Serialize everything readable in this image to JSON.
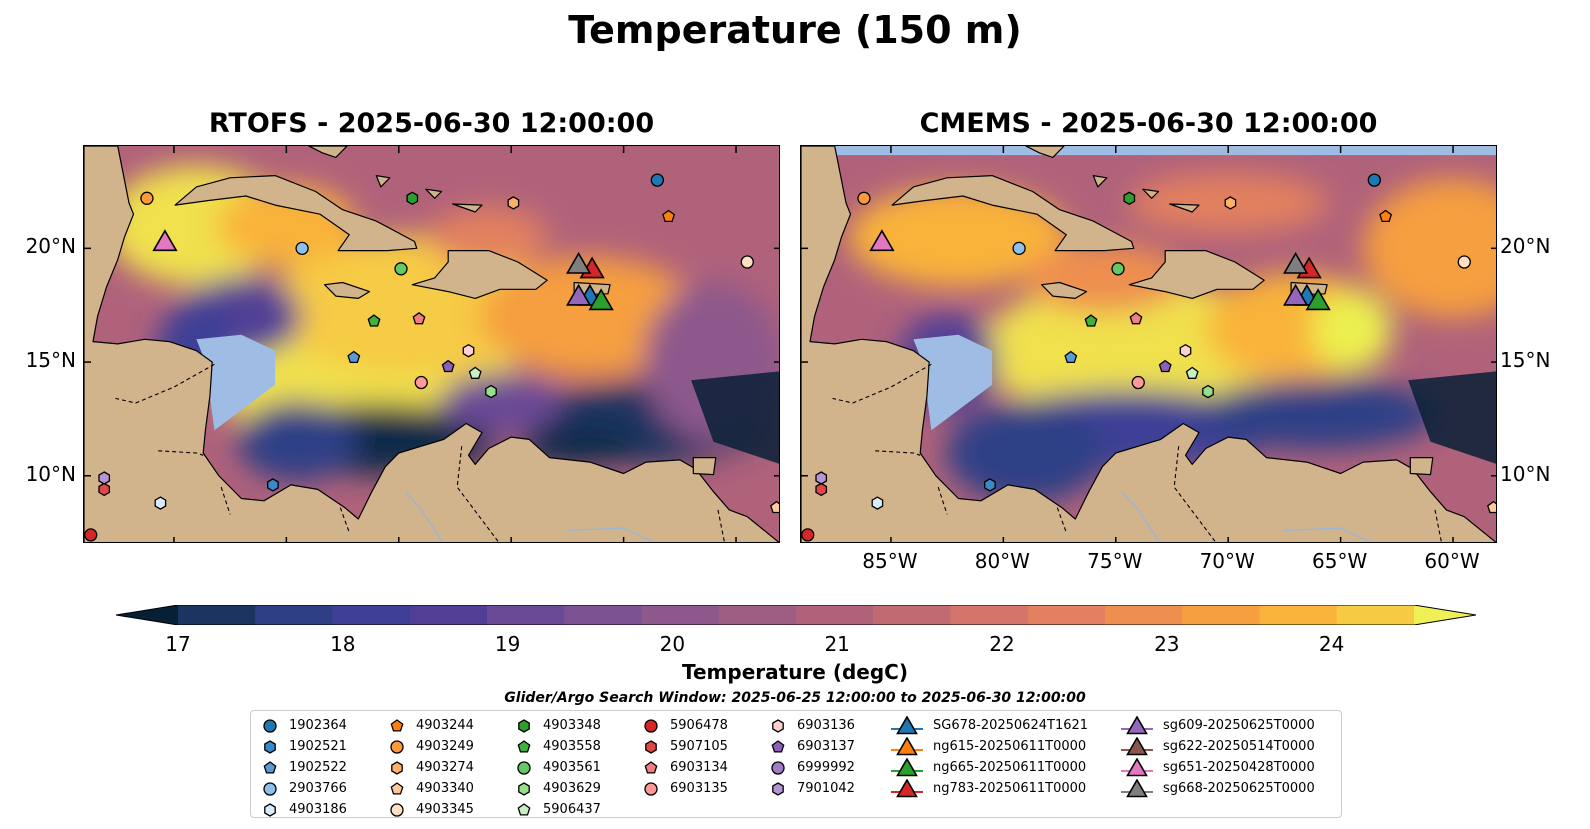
{
  "figure_title": "Temperature (150 m)",
  "panels": [
    {
      "title": "RTOFS - 2025-06-30 12:00:00"
    },
    {
      "title": "CMEMS - 2025-06-30 12:00:00"
    }
  ],
  "map_extent": {
    "lon": [
      -89,
      -58
    ],
    "lat": [
      7,
      24.5
    ]
  },
  "lon_ticks": [
    {
      "value": -85,
      "label": "85°W"
    },
    {
      "value": -80,
      "label": "80°W"
    },
    {
      "value": -75,
      "label": "75°W"
    },
    {
      "value": -70,
      "label": "70°W"
    },
    {
      "value": -65,
      "label": "65°W"
    },
    {
      "value": -60,
      "label": "60°W"
    }
  ],
  "lat_ticks": [
    {
      "value": 20,
      "label": "20°N"
    },
    {
      "value": 15,
      "label": "15°N"
    },
    {
      "value": 10,
      "label": "10°N"
    }
  ],
  "colorbar": {
    "label": "Temperature (degC)",
    "min": 17,
    "max": 24.5,
    "ticks": [
      "17",
      "18",
      "19",
      "20",
      "21",
      "22",
      "23",
      "24"
    ],
    "colors": [
      "#0b2a4a",
      "#1c3560",
      "#2e3f86",
      "#3e3f96",
      "#513f95",
      "#6a4a97",
      "#7d5293",
      "#8d588c",
      "#9e5e84",
      "#b0627b",
      "#c26a72",
      "#d4746a",
      "#e2805f",
      "#ee8f4f",
      "#f59f3f",
      "#f9b33a",
      "#f6cb44",
      "#f0e14d",
      "#ecf04f"
    ],
    "under_color": "#082036",
    "over_color": "#eef056"
  },
  "land_color": "#d2b48c",
  "ocean_color": "#9fbde4",
  "legend": {
    "title": "Glider/Argo Search Window: 2025-06-25 12:00:00 to 2025-06-30 12:00:00",
    "columns": [
      [
        {
          "label": "1902364",
          "marker": "circle",
          "color": "#1f77b4"
        },
        {
          "label": "1902521",
          "marker": "hexagon",
          "color": "#3b89c8"
        },
        {
          "label": "1902522",
          "marker": "pentagon",
          "color": "#5a9bd5"
        },
        {
          "label": "2903766",
          "marker": "circle",
          "color": "#8ec1ea"
        },
        {
          "label": "4903186",
          "marker": "hexagon",
          "color": "#d8ebf8"
        }
      ],
      [
        {
          "label": "4903244",
          "marker": "pentagon",
          "color": "#ff7f0e"
        },
        {
          "label": "4903249",
          "marker": "circle",
          "color": "#ff9a3c"
        },
        {
          "label": "4903274",
          "marker": "hexagon",
          "color": "#ffb067"
        },
        {
          "label": "4903340",
          "marker": "pentagon",
          "color": "#ffc89a"
        },
        {
          "label": "4903345",
          "marker": "circle",
          "color": "#ffe0c2"
        }
      ],
      [
        {
          "label": "4903348",
          "marker": "hexagon",
          "color": "#2ca02c"
        },
        {
          "label": "4903558",
          "marker": "pentagon",
          "color": "#3fb13f"
        },
        {
          "label": "4903561",
          "marker": "circle",
          "color": "#64c864"
        },
        {
          "label": "4903629",
          "marker": "hexagon",
          "color": "#98df8a"
        },
        {
          "label": "5906437",
          "marker": "pentagon",
          "color": "#c7f0c0"
        }
      ],
      [
        {
          "label": "5906478",
          "marker": "circle",
          "color": "#d62728"
        },
        {
          "label": "5907105",
          "marker": "hexagon",
          "color": "#e04848"
        },
        {
          "label": "6903134",
          "marker": "pentagon",
          "color": "#f07f7f"
        },
        {
          "label": "6903135",
          "marker": "circle",
          "color": "#ff9896"
        },
        {
          "label": "",
          "marker": "none",
          "color": "#ffffff"
        }
      ],
      [
        {
          "label": "6903136",
          "marker": "hexagon",
          "color": "#ffd0d0"
        },
        {
          "label": "6903137",
          "marker": "pentagon",
          "color": "#8c5fb8"
        },
        {
          "label": "6999992",
          "marker": "circle",
          "color": "#a07cc8"
        },
        {
          "label": "7901042",
          "marker": "hexagon",
          "color": "#b594d8"
        },
        {
          "label": "",
          "marker": "none",
          "color": "#ffffff"
        }
      ],
      [
        {
          "label": "SG678-20250624T1621",
          "marker": "triangle",
          "color": "#1f77b4"
        },
        {
          "label": "ng615-20250611T0000",
          "marker": "triangle",
          "color": "#ff7f0e"
        },
        {
          "label": "ng665-20250611T0000",
          "marker": "triangle",
          "color": "#2ca02c"
        },
        {
          "label": "ng783-20250611T0000",
          "marker": "triangle",
          "color": "#d62728"
        },
        {
          "label": "",
          "marker": "none",
          "color": "#ffffff"
        }
      ],
      [
        {
          "label": "sg609-20250625T0000",
          "marker": "triangle",
          "color": "#9467bd"
        },
        {
          "label": "sg622-20250514T0000",
          "marker": "triangle",
          "color": "#8c564b"
        },
        {
          "label": "sg651-20250428T0000",
          "marker": "triangle",
          "color": "#e377c2"
        },
        {
          "label": "sg668-20250625T0000",
          "marker": "triangle",
          "color": "#7f7f7f"
        },
        {
          "label": "",
          "marker": "none",
          "color": "#ffffff"
        }
      ]
    ]
  },
  "markers": [
    {
      "id": "1902364",
      "marker": "circle",
      "color": "#1f77b4",
      "lon": -63.5,
      "lat": 23.0
    },
    {
      "id": "1902521",
      "marker": "hexagon",
      "color": "#3b89c8",
      "lon": -80.6,
      "lat": 9.6
    },
    {
      "id": "1902522",
      "marker": "pentagon",
      "color": "#5a9bd5",
      "lon": -77.0,
      "lat": 15.2
    },
    {
      "id": "2903766",
      "marker": "circle",
      "color": "#8ec1ea",
      "lon": -79.3,
      "lat": 20.0
    },
    {
      "id": "4903186",
      "marker": "hexagon",
      "color": "#d8ebf8",
      "lon": -85.6,
      "lat": 8.8
    },
    {
      "id": "4903244",
      "marker": "pentagon",
      "color": "#ff7f0e",
      "lon": -63.0,
      "lat": 21.4
    },
    {
      "id": "4903249",
      "marker": "circle",
      "color": "#ff9a3c",
      "lon": -86.2,
      "lat": 22.2
    },
    {
      "id": "4903274",
      "marker": "hexagon",
      "color": "#ffb067",
      "lon": -69.9,
      "lat": 22.0
    },
    {
      "id": "4903340",
      "marker": "pentagon",
      "color": "#ffc89a",
      "lon": -58.2,
      "lat": 8.6
    },
    {
      "id": "4903345",
      "marker": "circle",
      "color": "#ffe0c2",
      "lon": -59.5,
      "lat": 19.4
    },
    {
      "id": "4903348",
      "marker": "hexagon",
      "color": "#2ca02c",
      "lon": -74.4,
      "lat": 22.2
    },
    {
      "id": "4903558",
      "marker": "pentagon",
      "color": "#3fb13f",
      "lon": -76.1,
      "lat": 16.8
    },
    {
      "id": "4903561",
      "marker": "circle",
      "color": "#64c864",
      "lon": -74.9,
      "lat": 19.1
    },
    {
      "id": "4903629",
      "marker": "hexagon",
      "color": "#98df8a",
      "lon": -70.9,
      "lat": 13.7
    },
    {
      "id": "5906437",
      "marker": "pentagon",
      "color": "#c7f0c0",
      "lon": -71.6,
      "lat": 14.5
    },
    {
      "id": "5906478",
      "marker": "circle",
      "color": "#d62728",
      "lon": -88.7,
      "lat": 7.4
    },
    {
      "id": "5907105",
      "marker": "hexagon",
      "color": "#e04848",
      "lon": -88.1,
      "lat": 9.4
    },
    {
      "id": "6903134",
      "marker": "pentagon",
      "color": "#f07f7f",
      "lon": -74.1,
      "lat": 16.9
    },
    {
      "id": "6903135",
      "marker": "circle",
      "color": "#ff9896",
      "lon": -74.0,
      "lat": 14.1
    },
    {
      "id": "6903136",
      "marker": "hexagon",
      "color": "#ffd0d0",
      "lon": -71.9,
      "lat": 15.5
    },
    {
      "id": "6903137",
      "marker": "pentagon",
      "color": "#8c5fb8",
      "lon": -72.8,
      "lat": 14.8
    },
    {
      "id": "7901042",
      "marker": "hexagon",
      "color": "#b594d8",
      "lon": -88.1,
      "lat": 9.9
    },
    {
      "id": "SG678-20250624T1621",
      "marker": "triangle",
      "color": "#1f77b4",
      "lon": -66.5,
      "lat": 17.8
    },
    {
      "id": "ng783-20250611T0000",
      "marker": "triangle",
      "color": "#d62728",
      "lon": -66.4,
      "lat": 19.0
    },
    {
      "id": "ng665-20250611T0000",
      "marker": "triangle",
      "color": "#2ca02c",
      "lon": -66.0,
      "lat": 17.6
    },
    {
      "id": "sg609-20250625T0000",
      "marker": "triangle",
      "color": "#9467bd",
      "lon": -67.0,
      "lat": 17.8
    },
    {
      "id": "sg668-20250625T0000",
      "marker": "triangle",
      "color": "#7f7f7f",
      "lon": -67.0,
      "lat": 19.2
    },
    {
      "id": "sg651-20250428T0000",
      "marker": "triangle",
      "color": "#e377c2",
      "lon": -85.4,
      "lat": 20.2
    }
  ]
}
